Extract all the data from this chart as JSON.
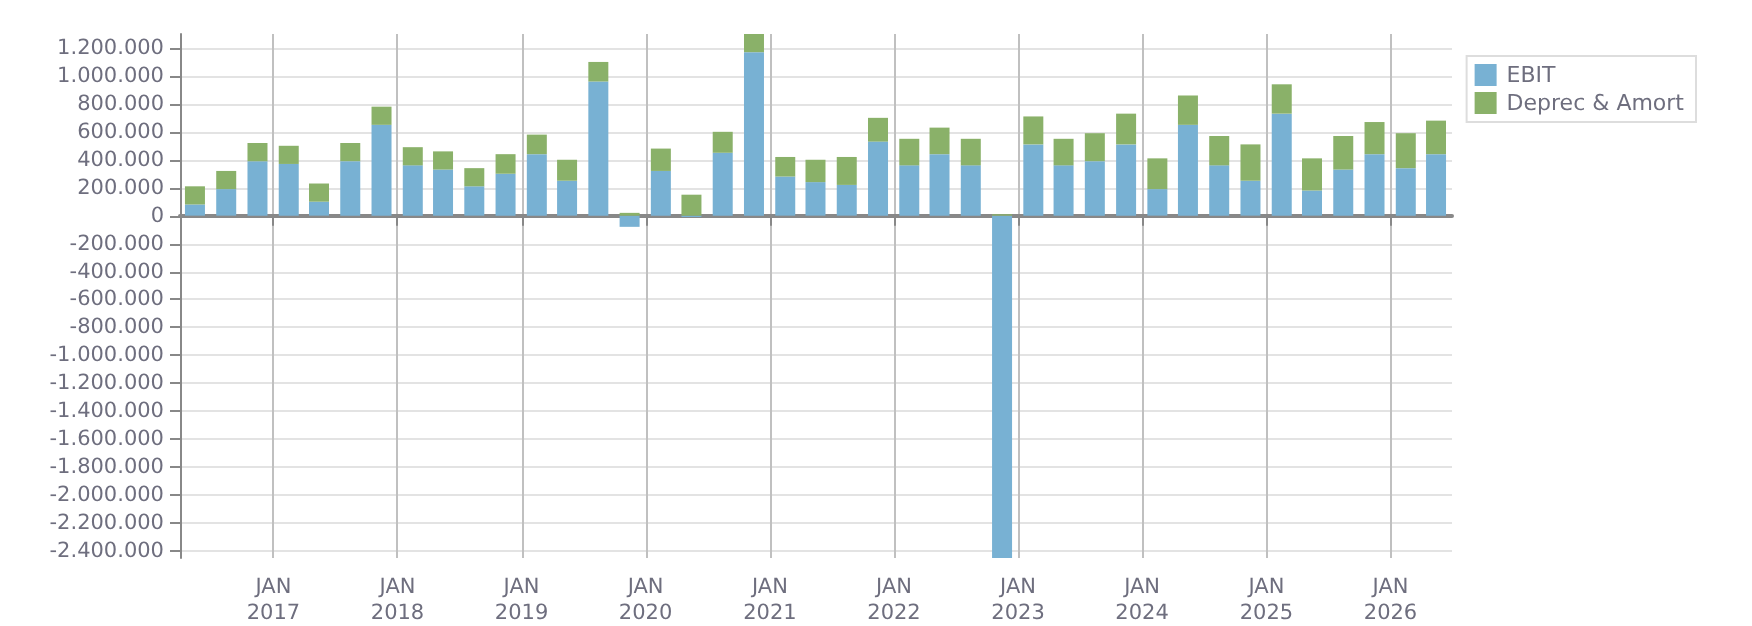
{
  "chart_data": {
    "type": "bar",
    "stacked": true,
    "x": [
      "2016-05-15",
      "2016-08-15",
      "2016-11-15",
      "2017-02-15",
      "2017-05-15",
      "2017-08-15",
      "2017-11-15",
      "2018-02-15",
      "2018-05-15",
      "2018-08-15",
      "2018-11-15",
      "2019-02-15",
      "2019-05-15",
      "2019-08-15",
      "2019-11-15",
      "2020-02-15",
      "2020-05-15",
      "2020-08-15",
      "2020-11-15",
      "2021-02-15",
      "2021-05-15",
      "2021-08-15",
      "2021-11-15",
      "2022-02-15",
      "2022-05-15",
      "2022-08-15",
      "2022-11-15",
      "2023-02-15",
      "2023-05-15",
      "2023-08-15",
      "2023-11-15",
      "2024-02-15",
      "2024-05-15",
      "2024-08-15",
      "2024-11-15",
      "2025-02-15",
      "2025-05-15",
      "2025-08-15",
      "2025-11-15",
      "2026-02-15",
      "2026-05-15"
    ],
    "series": [
      {
        "name": "EBIT",
        "color": "#78b1d3",
        "values": [
          80000,
          190000,
          390000,
          370000,
          100000,
          390000,
          650000,
          360000,
          330000,
          210000,
          300000,
          440000,
          250000,
          960000,
          -80000,
          320000,
          -10000,
          450000,
          1170000,
          280000,
          240000,
          220000,
          530000,
          360000,
          440000,
          360000,
          -2450000,
          510000,
          360000,
          390000,
          510000,
          190000,
          650000,
          360000,
          250000,
          730000,
          180000,
          330000,
          440000,
          340000,
          440000
        ]
      },
      {
        "name": "Deprec & Amort",
        "color": "#8ab169",
        "values": [
          130000,
          130000,
          130000,
          130000,
          130000,
          130000,
          130000,
          130000,
          130000,
          130000,
          140000,
          140000,
          150000,
          140000,
          20000,
          160000,
          150000,
          150000,
          130000,
          140000,
          160000,
          200000,
          170000,
          190000,
          190000,
          190000,
          10000,
          200000,
          190000,
          200000,
          220000,
          220000,
          210000,
          210000,
          260000,
          210000,
          230000,
          240000,
          230000,
          250000,
          240000
        ]
      }
    ],
    "xlim": [
      "2016-04-01",
      "2026-07-01"
    ],
    "xticks": [
      {
        "value": "2017-01-01",
        "label": "JAN\n2017"
      },
      {
        "value": "2018-01-01",
        "label": "JAN\n2018"
      },
      {
        "value": "2019-01-01",
        "label": "JAN\n2019"
      },
      {
        "value": "2020-01-01",
        "label": "JAN\n2020"
      },
      {
        "value": "2021-01-01",
        "label": "JAN\n2021"
      },
      {
        "value": "2022-01-01",
        "label": "JAN\n2022"
      },
      {
        "value": "2023-01-01",
        "label": "JAN\n2023"
      },
      {
        "value": "2024-01-01",
        "label": "JAN\n2024"
      },
      {
        "value": "2025-01-01",
        "label": "JAN\n2025"
      },
      {
        "value": "2026-01-01",
        "label": "JAN\n2026"
      }
    ],
    "ylim": [
      -2450000,
      1300000
    ],
    "yticks": [
      {
        "value": -2400000,
        "label": "-2.400.000"
      },
      {
        "value": -2200000,
        "label": "-2.200.000"
      },
      {
        "value": -2000000,
        "label": "-2.000.000"
      },
      {
        "value": -1800000,
        "label": "-1.800.000"
      },
      {
        "value": -1600000,
        "label": "-1.600.000"
      },
      {
        "value": -1400000,
        "label": "-1.400.000"
      },
      {
        "value": -1200000,
        "label": "-1.200.000"
      },
      {
        "value": -1000000,
        "label": "-1.000.000"
      },
      {
        "value": -800000,
        "label": "-800.000"
      },
      {
        "value": -600000,
        "label": "-600.000"
      },
      {
        "value": -400000,
        "label": "-400.000"
      },
      {
        "value": -200000,
        "label": "-200.000"
      },
      {
        "value": 0,
        "label": "0"
      },
      {
        "value": 200000,
        "label": "200.000"
      },
      {
        "value": 400000,
        "label": "400.000"
      },
      {
        "value": 600000,
        "label": "600.000"
      },
      {
        "value": 800000,
        "label": "800.000"
      },
      {
        "value": 1000000,
        "label": "1.000.000"
      },
      {
        "value": 1200000,
        "label": "1.200.000"
      }
    ],
    "grid": true,
    "legend": "right"
  }
}
